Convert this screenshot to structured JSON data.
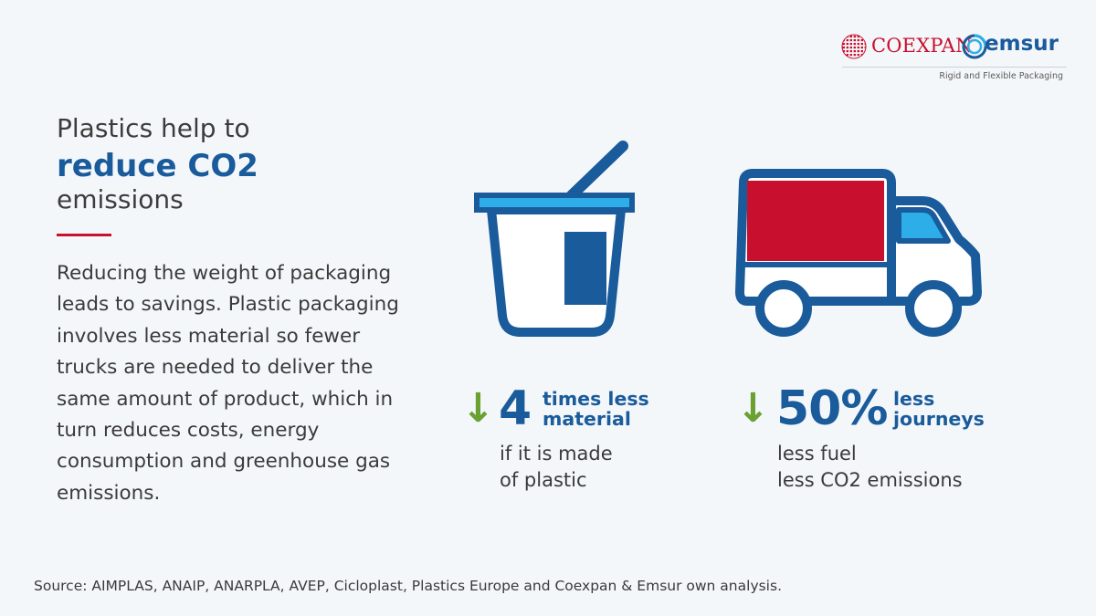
{
  "logo": {
    "coexpan": "COEXPAN",
    "emsur": "emsur",
    "tagline": "Rigid and Flexible Packaging"
  },
  "heading": {
    "line1": "Plastics help to",
    "line2": "reduce CO2",
    "line3": "emissions"
  },
  "body": "Reducing the weight of packaging leads to savings. Plastic packaging involves less material so fewer trucks are needed to deliver the same amount of product, which in turn reduces costs, energy consumption and greenhouse gas emissions.",
  "stats": [
    {
      "arrow": "↓",
      "value": "4",
      "label_line1": "times less",
      "label_line2": "material",
      "note_line1": "if it is made",
      "note_line2": "of plastic",
      "icon": "yogurt-cup-icon"
    },
    {
      "arrow": "↓",
      "value": "50%",
      "label_line1": "less",
      "label_line2": "journeys",
      "note_line1": "less fuel",
      "note_line2": "less CO2 emissions",
      "icon": "truck-icon"
    }
  ],
  "source": "Source: AIMPLAS, ANAIP, ANARPLA, AVEP, Cicloplast, Plastics Europe and Coexpan & Emsur own analysis.",
  "colors": {
    "background": "#f4f7fa",
    "brand_blue": "#1a5b9c",
    "light_blue": "#2eaee8",
    "accent_red": "#c8102e",
    "arrow_green": "#6aa132"
  }
}
